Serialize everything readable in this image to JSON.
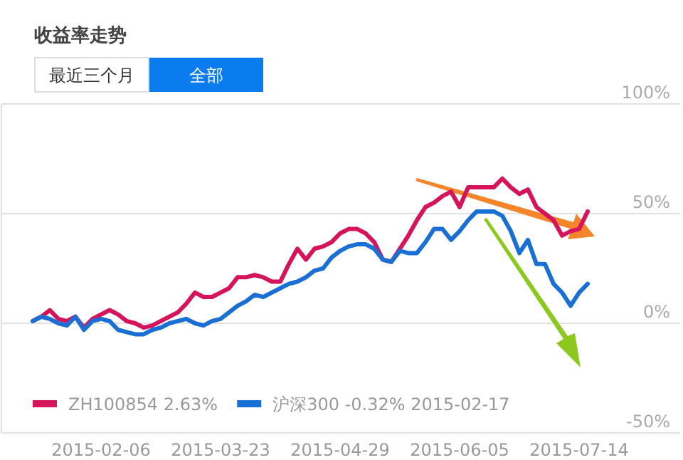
{
  "chart_data": {
    "type": "line",
    "title": "收益率走势",
    "annotations": [
      "最近三个月",
      "全部"
    ],
    "categories": [
      null,
      null,
      null,
      null,
      null,
      null,
      null,
      null,
      "2015-02-06",
      null,
      null,
      null,
      null,
      null,
      null,
      null,
      null,
      null,
      null,
      null,
      null,
      null,
      "2015-03-23",
      null,
      null,
      null,
      null,
      null,
      null,
      null,
      null,
      null,
      null,
      null,
      null,
      null,
      "2015-04-29",
      null,
      null,
      null,
      null,
      null,
      null,
      null,
      null,
      null,
      null,
      null,
      null,
      null,
      "2015-06-05",
      null,
      null,
      null,
      null,
      null,
      null,
      null,
      null,
      null,
      null,
      null,
      null,
      null,
      "2015-07-14",
      null
    ],
    "series": [
      {
        "name": "ZH100854 2.63%",
        "color": "#d6145b",
        "values": [
          1,
          3,
          6,
          2,
          1,
          3,
          -2,
          2,
          4,
          6,
          4,
          1,
          0,
          -2,
          -1,
          1,
          3,
          5,
          9,
          14,
          12,
          12,
          14,
          16,
          21,
          21,
          22,
          21,
          19,
          19,
          27,
          34,
          29,
          34,
          35,
          37,
          41,
          43,
          43,
          41,
          37,
          29,
          28,
          34,
          40,
          47,
          53,
          55,
          58,
          60,
          53,
          62,
          62,
          62,
          62,
          66,
          62,
          59,
          61,
          53,
          50,
          47,
          40,
          42,
          43,
          51
        ]
      },
      {
        "name": "沪深300 -0.32% 2015-02-17",
        "color": "#1a6fd4",
        "values": [
          1,
          3,
          2,
          0,
          -1,
          3,
          -3,
          1,
          2,
          1,
          -3,
          -4,
          -5,
          -5,
          -3,
          -2,
          0,
          1,
          2,
          0,
          -1,
          1,
          2,
          5,
          8,
          10,
          13,
          12,
          14,
          16,
          18,
          19,
          21,
          24,
          25,
          30,
          33,
          35,
          36,
          36,
          34,
          29,
          28,
          33,
          32,
          32,
          37,
          43,
          43,
          38,
          42,
          47,
          51,
          51,
          51,
          49,
          42,
          32,
          38,
          27,
          27,
          18,
          14,
          8,
          14,
          18
        ]
      }
    ],
    "ylim": [
      -50,
      100
    ],
    "yticks": [
      {
        "value": -50,
        "label": "-50%"
      },
      {
        "value": 0,
        "label": "0%"
      },
      {
        "value": 50,
        "label": "50%"
      },
      {
        "value": 100,
        "label": "100%"
      }
    ],
    "grid": "y",
    "legend": "bottom left",
    "marker": "none",
    "line_style": "solid"
  }
}
